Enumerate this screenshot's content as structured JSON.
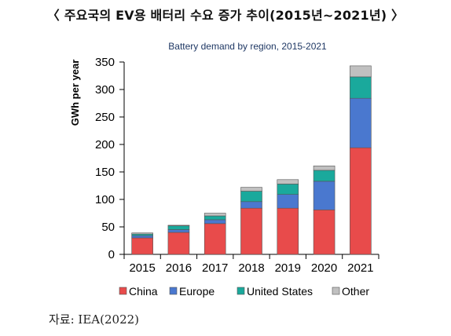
{
  "heading": "〈 주요국의 EV용 배터리 수요 증가 추이(2015년~2021년) 〉",
  "source": "자료: IEA(2022)",
  "colors": {
    "China": "#e84b4b",
    "Europe": "#4a78cf",
    "United States": "#1aa99c",
    "Other": "#c0c0c0"
  },
  "chart_data": {
    "type": "bar",
    "stacked": true,
    "title": "Battery demand by region, 2015-2021",
    "xlabel": "",
    "ylabel": "GWh per year",
    "ylim": [
      0,
      350
    ],
    "yticks": [
      0,
      50,
      100,
      150,
      200,
      250,
      300,
      350
    ],
    "categories": [
      "2015",
      "2016",
      "2017",
      "2018",
      "2019",
      "2020",
      "2021"
    ],
    "series": [
      {
        "name": "China",
        "values": [
          30,
          40,
          56,
          84,
          84,
          81,
          194
        ]
      },
      {
        "name": "Europe",
        "values": [
          4,
          5,
          7,
          12,
          25,
          52,
          90
        ]
      },
      {
        "name": "United States",
        "values": [
          3,
          7,
          7,
          19,
          19,
          20,
          39
        ]
      },
      {
        "name": "Other",
        "values": [
          2,
          1,
          5,
          7,
          8,
          8,
          20
        ]
      }
    ],
    "grid": false,
    "legend": "bottom"
  }
}
